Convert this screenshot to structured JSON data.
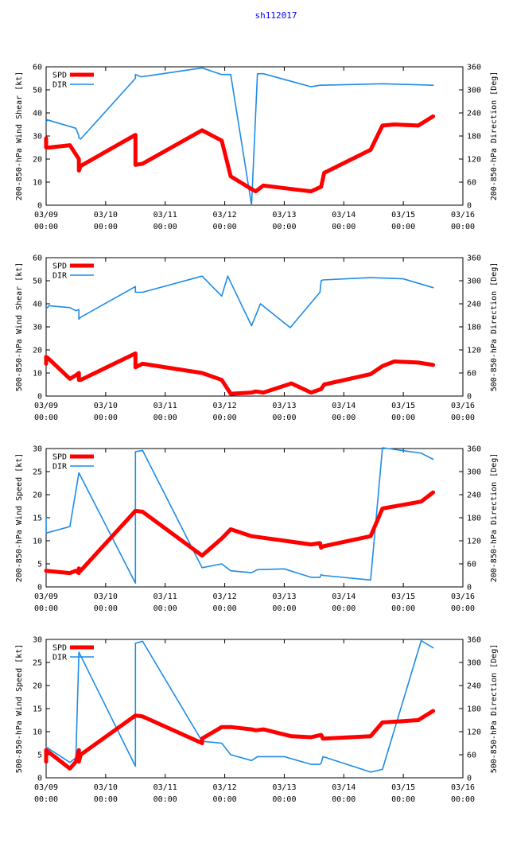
{
  "title": "sh112017",
  "colors": {
    "spd": "#ff0000",
    "dir": "#1e8ce6",
    "title": "#0000ff",
    "axis": "#000000"
  },
  "x_ticks": [
    {
      "date": "03/09",
      "time": "00:00"
    },
    {
      "date": "03/10",
      "time": "00:00"
    },
    {
      "date": "03/11",
      "time": "00:00"
    },
    {
      "date": "03/12",
      "time": "00:00"
    },
    {
      "date": "03/13",
      "time": "00:00"
    },
    {
      "date": "03/14",
      "time": "00:00"
    },
    {
      "date": "03/15",
      "time": "00:00"
    },
    {
      "date": "03/16",
      "time": "00:00"
    }
  ],
  "chart_data": [
    {
      "type": "line",
      "ylabel": "200-850-hPa Wind Shear [kt]",
      "y2label": "200-850-hPa Direction [Deg]",
      "xlim": [
        0,
        7
      ],
      "ylim": [
        0,
        60
      ],
      "yticks": [
        0,
        10,
        20,
        30,
        40,
        50,
        60
      ],
      "y2lim": [
        0,
        360
      ],
      "y2ticks": [
        0,
        60,
        120,
        180,
        240,
        300,
        360
      ],
      "legend": "top-left",
      "series": [
        {
          "name": "SPD",
          "axis": "left",
          "color": "#ff0000",
          "x": [
            0,
            0,
            0.05,
            0.4,
            0.5,
            0.55,
            0.55,
            0.58,
            1.5,
            1.5,
            1.62,
            2.62,
            2.95,
            3.1,
            3.45,
            3.52,
            3.65,
            4.12,
            4.45,
            4.62,
            4.67,
            5.45,
            5.65,
            5.85,
            6.25,
            6.5
          ],
          "y": [
            29,
            25,
            25,
            26,
            22,
            20,
            15,
            17,
            30.5,
            17.5,
            18,
            32.5,
            28,
            12.5,
            7,
            6,
            8.5,
            7,
            6,
            8,
            14,
            24,
            34.5,
            35,
            34.5,
            38.5
          ]
        },
        {
          "name": "DIR",
          "axis": "right",
          "color": "#1e8ce6",
          "x": [
            0,
            0.02,
            0.5,
            0.55,
            0.55,
            0.58,
            1.5,
            1.5,
            1.6,
            2.62,
            2.95,
            3.1,
            3.45,
            3.55,
            3.6,
            3.62,
            3.65,
            4.45,
            4.6,
            5.2,
            5.65,
            6.5
          ],
          "y": [
            215,
            222,
            200,
            180,
            175,
            172,
            330,
            340,
            334,
            357,
            340,
            340,
            0,
            342,
            342,
            342,
            342,
            308,
            312,
            314,
            316,
            312
          ]
        }
      ]
    },
    {
      "type": "line",
      "ylabel": "500-850-hPa Wind Shear [kt]",
      "y2label": "500-850-hPa Direction [Deg]",
      "xlim": [
        0,
        7
      ],
      "ylim": [
        0,
        60
      ],
      "yticks": [
        0,
        10,
        20,
        30,
        40,
        50,
        60
      ],
      "y2lim": [
        0,
        360
      ],
      "y2ticks": [
        0,
        60,
        120,
        180,
        240,
        300,
        360
      ],
      "legend": "top-left",
      "series": [
        {
          "name": "SPD",
          "axis": "left",
          "color": "#ff0000",
          "x": [
            0,
            0,
            0.05,
            0.4,
            0.5,
            0.55,
            0.55,
            0.58,
            1.5,
            1.5,
            1.62,
            2.62,
            2.95,
            3.1,
            3.45,
            3.52,
            3.65,
            4.12,
            4.45,
            4.62,
            4.67,
            5.45,
            5.65,
            5.85,
            6.25,
            6.5
          ],
          "y": [
            14,
            17,
            16,
            7.5,
            9,
            10,
            7,
            7,
            18.5,
            12.5,
            14,
            10,
            7,
            1,
            1.5,
            2,
            1.5,
            5.5,
            1.5,
            3,
            5,
            9.5,
            13,
            15,
            14.5,
            13.5
          ]
        },
        {
          "name": "DIR",
          "axis": "right",
          "color": "#1e8ce6",
          "x": [
            0,
            0.05,
            0.4,
            0.5,
            0.55,
            0.55,
            0.58,
            1.5,
            1.5,
            1.62,
            2.62,
            2.95,
            3.05,
            3.45,
            3.6,
            4.1,
            4.6,
            4.62,
            4.65,
            5.45,
            6.0,
            6.5
          ],
          "y": [
            227,
            235,
            230,
            222,
            225,
            200,
            205,
            285,
            270,
            270,
            312,
            260,
            312,
            183,
            240,
            178,
            270,
            300,
            302,
            308,
            305,
            282
          ]
        }
      ]
    },
    {
      "type": "line",
      "ylabel": "200-850-hPa Wind Speed [kt]",
      "y2label": "200-850-hPa Direction [Deg]",
      "xlim": [
        0,
        7
      ],
      "ylim": [
        0,
        30
      ],
      "yticks": [
        0,
        5,
        10,
        15,
        20,
        25,
        30
      ],
      "y2lim": [
        0,
        360
      ],
      "y2ticks": [
        0,
        60,
        120,
        180,
        240,
        300,
        360
      ],
      "legend": "top-left",
      "series": [
        {
          "name": "SPD",
          "axis": "left",
          "color": "#ff0000",
          "x": [
            0,
            0.4,
            0.5,
            0.55,
            0.55,
            0.58,
            1.5,
            1.62,
            2.62,
            2.95,
            3.1,
            3.45,
            4.45,
            4.6,
            4.62,
            4.65,
            5.45,
            5.65,
            6.3,
            6.5
          ],
          "y": [
            3.5,
            3,
            3.5,
            3,
            4,
            3.5,
            16.5,
            16.3,
            6.8,
            10.5,
            12.5,
            11,
            9.2,
            9.5,
            8.5,
            8.8,
            11,
            17,
            18.5,
            20.5
          ]
        },
        {
          "name": "DIR",
          "axis": "right",
          "color": "#1e8ce6",
          "x": [
            0,
            0,
            0.4,
            0.55,
            1.5,
            1.5,
            1.62,
            2.62,
            2.95,
            3.1,
            3.45,
            3.55,
            4.0,
            4.45,
            4.6,
            4.62,
            4.65,
            5.45,
            5.65,
            6.3,
            6.5
          ],
          "y": [
            180,
            140,
            157,
            297,
            10,
            352,
            355,
            50,
            60,
            42,
            37,
            45,
            47,
            25,
            25,
            32,
            30,
            18,
            362,
            348,
            332
          ]
        }
      ]
    },
    {
      "type": "line",
      "ylabel": "500-850-hPa Wind Speed [kt]",
      "y2label": "500-850-hPa Direction [Deg]",
      "xlim": [
        0,
        7
      ],
      "ylim": [
        0,
        30
      ],
      "yticks": [
        0,
        5,
        10,
        15,
        20,
        25,
        30
      ],
      "y2lim": [
        0,
        360
      ],
      "y2ticks": [
        0,
        60,
        120,
        180,
        240,
        300,
        360
      ],
      "legend": "top-left",
      "series": [
        {
          "name": "SPD",
          "axis": "left",
          "color": "#ff0000",
          "x": [
            0,
            0,
            0.05,
            0.4,
            0.5,
            0.55,
            0.55,
            0.58,
            1.5,
            1.62,
            2.62,
            2.62,
            2.95,
            3.1,
            3.45,
            3.52,
            3.65,
            4.12,
            4.45,
            4.62,
            4.65,
            5.45,
            5.65,
            6.25,
            6.5
          ],
          "y": [
            3.5,
            6,
            5.5,
            2,
            3.5,
            6,
            3.5,
            5,
            13.5,
            13.3,
            7.5,
            8.5,
            11,
            11,
            10.5,
            10.3,
            10.5,
            9,
            8.8,
            9.3,
            8.5,
            9,
            12,
            12.5,
            14.5
          ]
        },
        {
          "name": "DIR",
          "axis": "right",
          "color": "#1e8ce6",
          "x": [
            0,
            0.4,
            0.5,
            0.55,
            1.5,
            1.5,
            1.62,
            2.62,
            2.95,
            3.1,
            3.45,
            3.55,
            4.0,
            4.45,
            4.6,
            4.62,
            4.65,
            5.45,
            5.65,
            6.3,
            6.5
          ],
          "y": [
            80,
            40,
            52,
            327,
            30,
            350,
            355,
            95,
            90,
            60,
            45,
            55,
            55,
            35,
            35,
            38,
            55,
            15,
            22,
            357,
            338
          ]
        }
      ]
    }
  ]
}
